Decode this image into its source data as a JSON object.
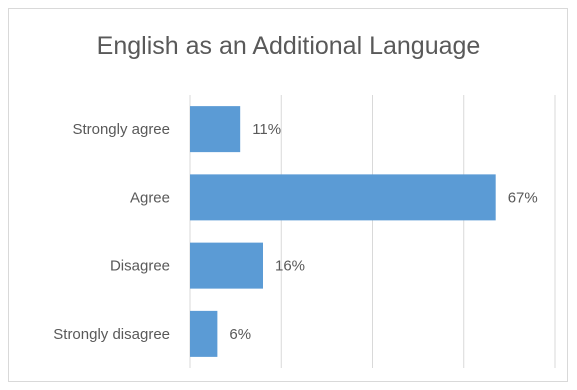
{
  "chart_data": {
    "type": "bar",
    "orientation": "horizontal",
    "title": "English as an Additional Language",
    "categories": [
      "Strongly agree",
      "Agree",
      "Disagree",
      "Strongly disagree"
    ],
    "values": [
      11,
      67,
      16,
      6
    ],
    "value_labels": [
      "11%",
      "67%",
      "16%",
      "6%"
    ],
    "xlim": [
      0,
      80
    ],
    "grid": true,
    "legend": "none",
    "bar_color": "#5b9bd5"
  }
}
